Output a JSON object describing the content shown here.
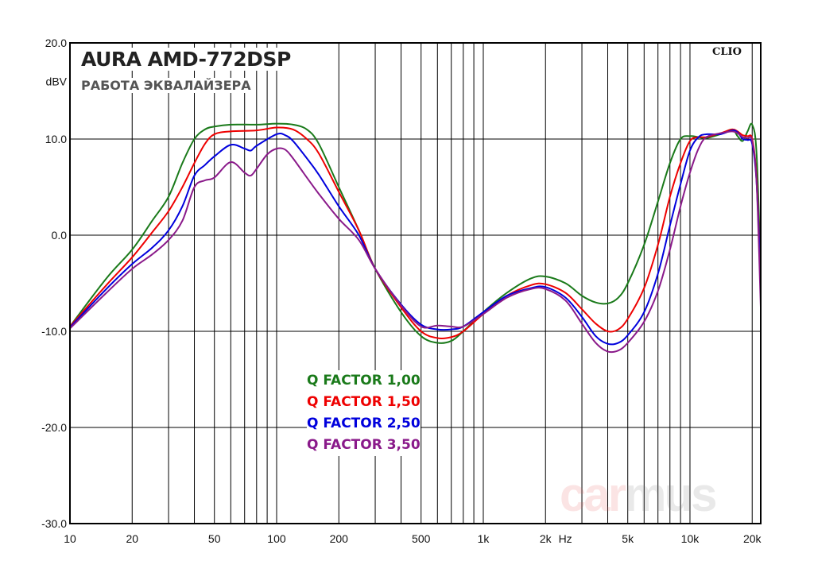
{
  "header": {
    "title": "AURA AMD-772DSP",
    "subtitle": "РАБОТА ЭКВАЛАЙЗЕРА",
    "badge": "CLIO"
  },
  "watermark": {
    "part1": "car",
    "part2": "mus"
  },
  "chart_data": {
    "type": "line",
    "x_scale": "log",
    "xlim": [
      10,
      22000
    ],
    "ylim": [
      -30,
      20
    ],
    "xlabel": "Hz",
    "ylabel": "dBV",
    "xticks": [
      {
        "v": 10,
        "label": "10"
      },
      {
        "v": 20,
        "label": "20"
      },
      {
        "v": 50,
        "label": "50"
      },
      {
        "v": 100,
        "label": "100"
      },
      {
        "v": 200,
        "label": "200"
      },
      {
        "v": 500,
        "label": "500"
      },
      {
        "v": 1000,
        "label": "1k"
      },
      {
        "v": 2000,
        "label": "2k"
      },
      {
        "v": 5000,
        "label": "5k"
      },
      {
        "v": 10000,
        "label": "10k"
      },
      {
        "v": 20000,
        "label": "20k"
      }
    ],
    "yticks": [
      {
        "v": 20,
        "label": "20.0"
      },
      {
        "v": 10,
        "label": "10.0"
      },
      {
        "v": 0,
        "label": "0.0"
      },
      {
        "v": -10,
        "label": "-10.0"
      },
      {
        "v": -20,
        "label": "-20.0"
      },
      {
        "v": -30,
        "label": "-30.0"
      }
    ],
    "grid": true,
    "legend_position": "center",
    "series": [
      {
        "name": "Q FACTOR 1,00",
        "color": "#1a7a1a",
        "points": [
          [
            10,
            -9.5
          ],
          [
            15,
            -4.5
          ],
          [
            20,
            -1.5
          ],
          [
            25,
            1.5
          ],
          [
            30,
            4
          ],
          [
            35,
            7.5
          ],
          [
            40,
            10
          ],
          [
            45,
            11
          ],
          [
            50,
            11.3
          ],
          [
            60,
            11.5
          ],
          [
            80,
            11.5
          ],
          [
            100,
            11.6
          ],
          [
            120,
            11.5
          ],
          [
            140,
            11
          ],
          [
            160,
            9.5
          ],
          [
            200,
            5
          ],
          [
            250,
            0.5
          ],
          [
            300,
            -3.5
          ],
          [
            400,
            -8
          ],
          [
            500,
            -10.5
          ],
          [
            600,
            -11.2
          ],
          [
            700,
            -11
          ],
          [
            800,
            -10
          ],
          [
            1000,
            -8
          ],
          [
            1300,
            -6
          ],
          [
            1700,
            -4.5
          ],
          [
            2000,
            -4.3
          ],
          [
            2500,
            -5
          ],
          [
            3000,
            -6.3
          ],
          [
            3500,
            -7
          ],
          [
            4000,
            -7.1
          ],
          [
            4500,
            -6.5
          ],
          [
            5000,
            -5
          ],
          [
            6000,
            -1
          ],
          [
            7000,
            3.5
          ],
          [
            8000,
            7.5
          ],
          [
            9000,
            10
          ],
          [
            10000,
            10.3
          ],
          [
            11000,
            10.2
          ],
          [
            12000,
            10.1
          ],
          [
            14000,
            10.5
          ],
          [
            16000,
            11
          ],
          [
            17000,
            10.3
          ],
          [
            18000,
            9.8
          ],
          [
            19000,
            10.8
          ],
          [
            20000,
            11.5
          ],
          [
            21000,
            8.5
          ],
          [
            22000,
            -4
          ]
        ]
      },
      {
        "name": "Q FACTOR 1,50",
        "color": "#ee0000",
        "points": [
          [
            10,
            -9.5
          ],
          [
            15,
            -5.2
          ],
          [
            20,
            -2.3
          ],
          [
            25,
            0.3
          ],
          [
            30,
            2.5
          ],
          [
            35,
            5
          ],
          [
            40,
            7.5
          ],
          [
            45,
            9.5
          ],
          [
            50,
            10.5
          ],
          [
            60,
            10.8
          ],
          [
            80,
            10.9
          ],
          [
            100,
            11.2
          ],
          [
            120,
            11
          ],
          [
            140,
            10
          ],
          [
            160,
            8.5
          ],
          [
            200,
            4.5
          ],
          [
            250,
            0.5
          ],
          [
            300,
            -3.5
          ],
          [
            400,
            -7.5
          ],
          [
            500,
            -10
          ],
          [
            600,
            -10.7
          ],
          [
            700,
            -10.6
          ],
          [
            800,
            -10
          ],
          [
            1000,
            -8.2
          ],
          [
            1300,
            -6.3
          ],
          [
            1700,
            -5.2
          ],
          [
            2000,
            -5.1
          ],
          [
            2500,
            -6
          ],
          [
            3000,
            -7.7
          ],
          [
            3500,
            -9.2
          ],
          [
            4000,
            -10
          ],
          [
            4500,
            -9.8
          ],
          [
            5000,
            -8.7
          ],
          [
            6000,
            -5.5
          ],
          [
            7000,
            -1
          ],
          [
            8000,
            4
          ],
          [
            9000,
            7.5
          ],
          [
            10000,
            9.8
          ],
          [
            11000,
            10.2
          ],
          [
            12000,
            10.2
          ],
          [
            14000,
            10.6
          ],
          [
            16000,
            11
          ],
          [
            17000,
            10.8
          ],
          [
            18000,
            10.4
          ],
          [
            19000,
            10.3
          ],
          [
            20000,
            10
          ],
          [
            21000,
            6
          ],
          [
            22000,
            -4.5
          ]
        ]
      },
      {
        "name": "Q FACTOR 2,50",
        "color": "#0000dd",
        "points": [
          [
            10,
            -9.6
          ],
          [
            15,
            -5.6
          ],
          [
            20,
            -3
          ],
          [
            25,
            -1.3
          ],
          [
            30,
            0.5
          ],
          [
            35,
            3
          ],
          [
            40,
            6.2
          ],
          [
            45,
            7.3
          ],
          [
            50,
            8.2
          ],
          [
            60,
            9.4
          ],
          [
            70,
            9
          ],
          [
            75,
            8.8
          ],
          [
            80,
            9.3
          ],
          [
            100,
            10.5
          ],
          [
            110,
            10.4
          ],
          [
            120,
            9.8
          ],
          [
            140,
            8
          ],
          [
            160,
            6.3
          ],
          [
            200,
            3
          ],
          [
            250,
            0
          ],
          [
            300,
            -3.5
          ],
          [
            400,
            -7.2
          ],
          [
            500,
            -9.3
          ],
          [
            600,
            -9.8
          ],
          [
            700,
            -9.8
          ],
          [
            800,
            -9.5
          ],
          [
            1000,
            -8
          ],
          [
            1300,
            -6.3
          ],
          [
            1700,
            -5.5
          ],
          [
            2000,
            -5.4
          ],
          [
            2500,
            -6.5
          ],
          [
            3000,
            -8.5
          ],
          [
            3500,
            -10.5
          ],
          [
            4000,
            -11.3
          ],
          [
            4500,
            -11.2
          ],
          [
            5000,
            -10.4
          ],
          [
            6000,
            -8
          ],
          [
            7000,
            -4
          ],
          [
            8000,
            1
          ],
          [
            9000,
            5.3
          ],
          [
            10000,
            8.8
          ],
          [
            11000,
            10.2
          ],
          [
            12000,
            10.5
          ],
          [
            14000,
            10.5
          ],
          [
            16000,
            10.9
          ],
          [
            17000,
            10.7
          ],
          [
            18000,
            10
          ],
          [
            19000,
            9.9
          ],
          [
            20000,
            9.5
          ],
          [
            21000,
            5.5
          ],
          [
            22000,
            -5
          ]
        ]
      },
      {
        "name": "Q FACTOR 3,50",
        "color": "#8a1a8a",
        "points": [
          [
            10,
            -9.7
          ],
          [
            15,
            -6
          ],
          [
            20,
            -3.5
          ],
          [
            25,
            -2
          ],
          [
            30,
            -0.5
          ],
          [
            35,
            1.5
          ],
          [
            40,
            5
          ],
          [
            45,
            5.7
          ],
          [
            50,
            6
          ],
          [
            60,
            7.6
          ],
          [
            70,
            6.5
          ],
          [
            75,
            6.2
          ],
          [
            80,
            6.9
          ],
          [
            90,
            8.4
          ],
          [
            100,
            9
          ],
          [
            110,
            8.9
          ],
          [
            120,
            8
          ],
          [
            140,
            6
          ],
          [
            160,
            4.3
          ],
          [
            200,
            1.7
          ],
          [
            250,
            -0.5
          ],
          [
            300,
            -3.5
          ],
          [
            400,
            -7.3
          ],
          [
            500,
            -9.5
          ],
          [
            600,
            -9.4
          ],
          [
            700,
            -9.5
          ],
          [
            800,
            -9.5
          ],
          [
            1000,
            -8.2
          ],
          [
            1300,
            -6.5
          ],
          [
            1700,
            -5.6
          ],
          [
            2000,
            -5.6
          ],
          [
            2500,
            -6.8
          ],
          [
            3000,
            -9.2
          ],
          [
            3500,
            -11.2
          ],
          [
            4000,
            -12.1
          ],
          [
            4500,
            -12
          ],
          [
            5000,
            -11.2
          ],
          [
            6000,
            -9
          ],
          [
            7000,
            -5.8
          ],
          [
            8000,
            -1.5
          ],
          [
            9000,
            3
          ],
          [
            10000,
            6.5
          ],
          [
            11000,
            9
          ],
          [
            12000,
            10.2
          ],
          [
            14000,
            10.6
          ],
          [
            16000,
            10.8
          ],
          [
            17000,
            10.6
          ],
          [
            18000,
            10.2
          ],
          [
            19000,
            10.1
          ],
          [
            20000,
            9.8
          ],
          [
            21000,
            5.5
          ],
          [
            22000,
            -7.5
          ]
        ]
      }
    ]
  }
}
